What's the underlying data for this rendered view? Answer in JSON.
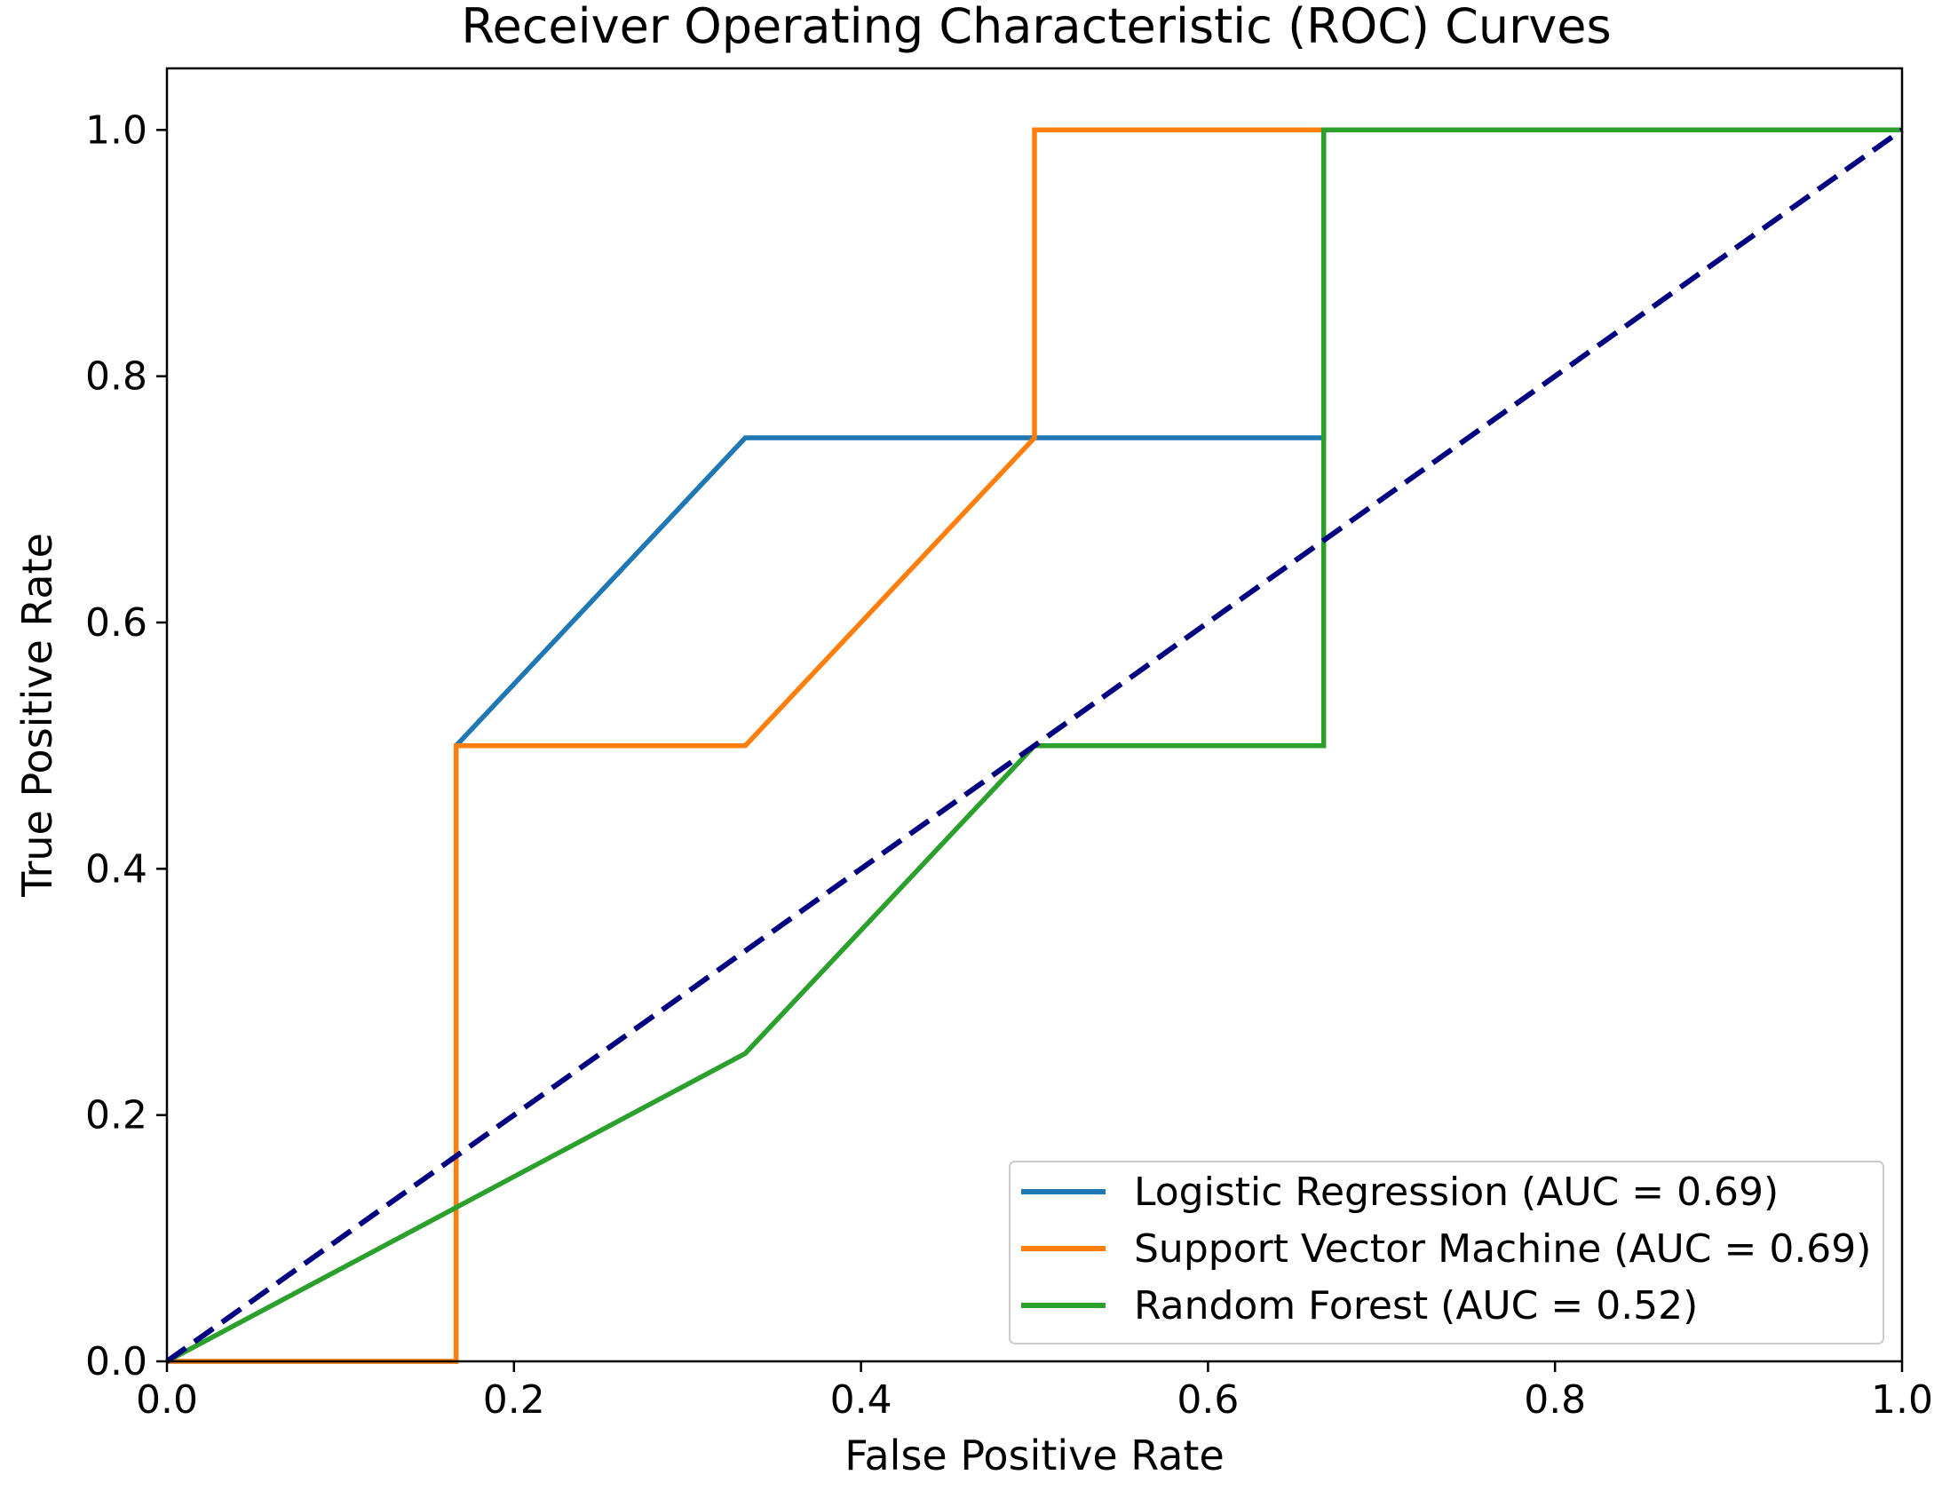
{
  "chart_data": {
    "type": "line",
    "title": "Receiver Operating Characteristic (ROC) Curves",
    "xlabel": "False Positive Rate",
    "ylabel": "True Positive Rate",
    "xlim": [
      0.0,
      1.0
    ],
    "ylim": [
      0.0,
      1.05
    ],
    "xticks": [
      0.0,
      0.2,
      0.4,
      0.6,
      0.8,
      1.0
    ],
    "yticks": [
      0.0,
      0.2,
      0.4,
      0.6,
      0.8,
      1.0
    ],
    "tick_labels": [
      "0.0",
      "0.2",
      "0.4",
      "0.6",
      "0.8",
      "1.0"
    ],
    "grid": false,
    "legend_position": "bottom-right",
    "series": [
      {
        "name": "Logistic Regression (AUC = 0.69)",
        "color": "#1f77b4",
        "style": "solid",
        "x": [
          0.0,
          0.1667,
          0.1667,
          0.3333,
          0.6667,
          0.6667,
          1.0
        ],
        "y": [
          0.0,
          0.0,
          0.5,
          0.75,
          0.75,
          1.0,
          1.0
        ]
      },
      {
        "name": "Support Vector Machine (AUC = 0.69)",
        "color": "#ff7f0e",
        "style": "solid",
        "x": [
          0.0,
          0.1667,
          0.1667,
          0.3333,
          0.5,
          0.5,
          0.6667,
          1.0
        ],
        "y": [
          0.0,
          0.0,
          0.5,
          0.5,
          0.75,
          1.0,
          1.0,
          1.0
        ]
      },
      {
        "name": "Random Forest (AUC = 0.52)",
        "color": "#2ca02c",
        "style": "solid",
        "x": [
          0.0,
          0.1667,
          0.3333,
          0.5,
          0.6667,
          0.6667,
          1.0
        ],
        "y": [
          0.0,
          0.125,
          0.25,
          0.5,
          0.5,
          1.0,
          1.0
        ]
      },
      {
        "name": "",
        "color": "#000080",
        "style": "dashed",
        "x": [
          0.0,
          1.0
        ],
        "y": [
          0.0,
          1.0
        ]
      }
    ]
  }
}
